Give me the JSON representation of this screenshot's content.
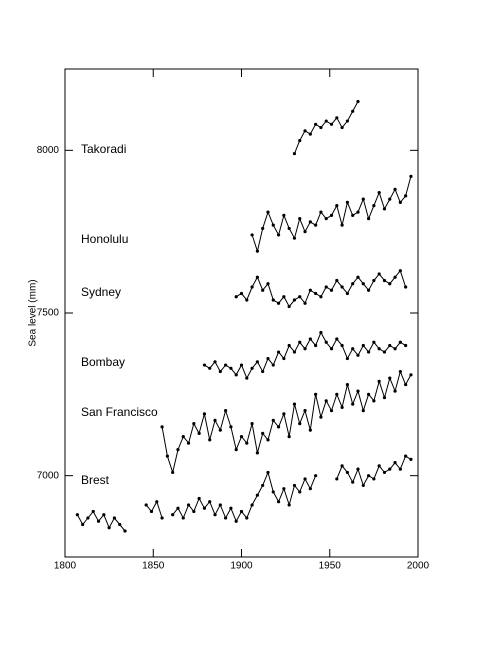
{
  "chart_data": {
    "type": "line",
    "y_label": "Sea level (mm)",
    "xlim": [
      1800,
      2000
    ],
    "xticks": [
      1800,
      1850,
      1900,
      1950,
      2000
    ],
    "ylim": [
      6750,
      8250
    ],
    "yticks": [
      7000,
      7500,
      8000
    ],
    "x": [
      1807,
      1810,
      1813,
      1816,
      1819,
      1822,
      1825,
      1828,
      1831,
      1834,
      1837,
      1840,
      1843,
      1846,
      1849,
      1852,
      1855,
      1858,
      1861,
      1864,
      1867,
      1870,
      1873,
      1876,
      1879,
      1882,
      1885,
      1888,
      1891,
      1894,
      1897,
      1900,
      1903,
      1906,
      1909,
      1912,
      1915,
      1918,
      1921,
      1924,
      1927,
      1930,
      1933,
      1936,
      1939,
      1942,
      1945,
      1948,
      1951,
      1954,
      1957,
      1960,
      1963,
      1966,
      1969,
      1972,
      1975,
      1978,
      1981,
      1984,
      1987,
      1990,
      1993,
      1996
    ],
    "series": [
      {
        "name": "Brest",
        "color": "#000000",
        "values": [
          6880,
          6850,
          6870,
          6890,
          6860,
          6880,
          6840,
          6870,
          6850,
          6830,
          null,
          null,
          null,
          6910,
          6890,
          6920,
          6870,
          null,
          6880,
          6900,
          6870,
          6910,
          6890,
          6930,
          6900,
          6920,
          6880,
          6910,
          6870,
          6900,
          6860,
          6890,
          6870,
          6910,
          6940,
          6970,
          7010,
          6950,
          6920,
          6960,
          6910,
          6970,
          6950,
          6990,
          6960,
          7000,
          null,
          null,
          null,
          6990,
          7030,
          7010,
          6980,
          7020,
          6970,
          7000,
          6990,
          7030,
          7010,
          7020,
          7040,
          7020,
          7060,
          7050
        ]
      },
      {
        "name": "San Francisco",
        "color": "#000000",
        "values": [
          null,
          null,
          null,
          null,
          null,
          null,
          null,
          null,
          null,
          null,
          null,
          null,
          null,
          null,
          null,
          null,
          7150,
          7060,
          7010,
          7080,
          7120,
          7100,
          7160,
          7130,
          7190,
          7110,
          7170,
          7140,
          7200,
          7150,
          7080,
          7120,
          7100,
          7160,
          7070,
          7130,
          7110,
          7170,
          7150,
          7190,
          7120,
          7220,
          7160,
          7200,
          7140,
          7250,
          7180,
          7230,
          7200,
          7250,
          7210,
          7280,
          7220,
          7260,
          7200,
          7250,
          7230,
          7290,
          7240,
          7300,
          7260,
          7320,
          7280,
          7310
        ]
      },
      {
        "name": "Bombay",
        "color": "#000000",
        "values": [
          null,
          null,
          null,
          null,
          null,
          null,
          null,
          null,
          null,
          null,
          null,
          null,
          null,
          null,
          null,
          null,
          null,
          null,
          null,
          null,
          null,
          null,
          null,
          null,
          7340,
          7330,
          7350,
          7320,
          7340,
          7330,
          7310,
          7340,
          7300,
          7330,
          7350,
          7320,
          7360,
          7340,
          7380,
          7360,
          7400,
          7380,
          7410,
          7390,
          7420,
          7400,
          7440,
          7410,
          7390,
          7420,
          7400,
          7360,
          7390,
          7370,
          7400,
          7380,
          7410,
          7390,
          7380,
          7400,
          7390,
          7410,
          7400,
          null
        ]
      },
      {
        "name": "Sydney",
        "color": "#000000",
        "values": [
          null,
          null,
          null,
          null,
          null,
          null,
          null,
          null,
          null,
          null,
          null,
          null,
          null,
          null,
          null,
          null,
          null,
          null,
          null,
          null,
          null,
          null,
          null,
          null,
          null,
          null,
          null,
          null,
          null,
          null,
          7550,
          7560,
          7540,
          7580,
          7610,
          7570,
          7590,
          7540,
          7530,
          7550,
          7520,
          7540,
          7550,
          7530,
          7570,
          7560,
          7550,
          7580,
          7570,
          7600,
          7580,
          7560,
          7590,
          7610,
          7590,
          7570,
          7600,
          7620,
          7600,
          7590,
          7610,
          7630,
          7580,
          null
        ]
      },
      {
        "name": "Honolulu",
        "color": "#000000",
        "values": [
          null,
          null,
          null,
          null,
          null,
          null,
          null,
          null,
          null,
          null,
          null,
          null,
          null,
          null,
          null,
          null,
          null,
          null,
          null,
          null,
          null,
          null,
          null,
          null,
          null,
          null,
          null,
          null,
          null,
          null,
          null,
          null,
          null,
          7740,
          7690,
          7760,
          7810,
          7770,
          7740,
          7800,
          7760,
          7730,
          7790,
          7750,
          7780,
          7770,
          7810,
          7790,
          7800,
          7830,
          7770,
          7840,
          7800,
          7810,
          7850,
          7790,
          7830,
          7870,
          7820,
          7850,
          7880,
          7840,
          7860,
          7920
        ]
      },
      {
        "name": "Takoradi",
        "color": "#000000",
        "values": [
          null,
          null,
          null,
          null,
          null,
          null,
          null,
          null,
          null,
          null,
          null,
          null,
          null,
          null,
          null,
          null,
          null,
          null,
          null,
          null,
          null,
          null,
          null,
          null,
          null,
          null,
          null,
          null,
          null,
          null,
          null,
          null,
          null,
          null,
          null,
          null,
          null,
          null,
          null,
          null,
          null,
          7990,
          8030,
          8060,
          8050,
          8080,
          8070,
          8090,
          8080,
          8100,
          8070,
          8090,
          8120,
          8150,
          null,
          null,
          null,
          null,
          null,
          null,
          null,
          null,
          null,
          null
        ]
      }
    ]
  }
}
